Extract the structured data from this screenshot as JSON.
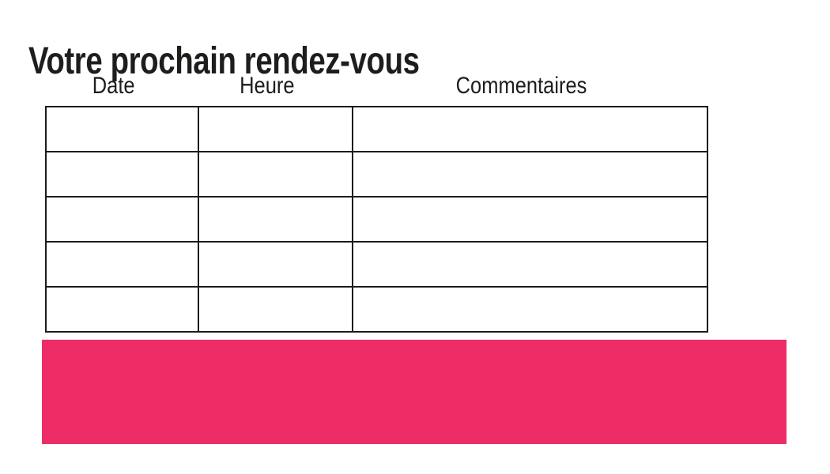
{
  "page": {
    "title": "Votre prochain rendez-vous"
  },
  "appointments_table": {
    "headers": [
      "Date",
      "Heure",
      "Commentaires"
    ],
    "rows": [
      [
        "",
        "",
        ""
      ],
      [
        "",
        "",
        ""
      ],
      [
        "",
        "",
        ""
      ],
      [
        "",
        "",
        ""
      ],
      [
        "",
        "",
        ""
      ]
    ]
  },
  "colors": {
    "accent_pink": "#EE2D67",
    "table_border": "#1b1b1b",
    "text": "#1d1d1b",
    "background": "#ffffff"
  }
}
